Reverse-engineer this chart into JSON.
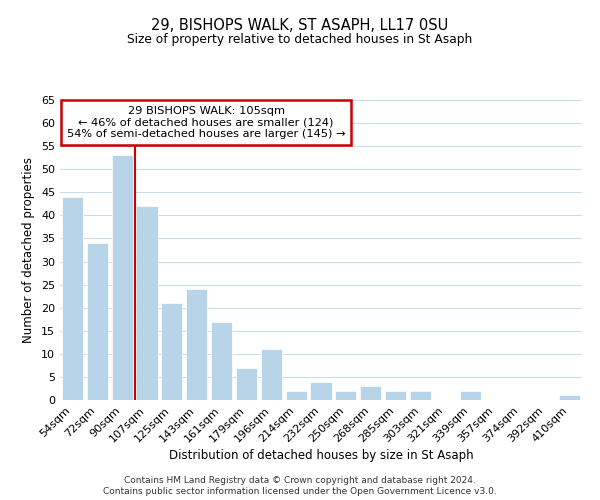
{
  "title": "29, BISHOPS WALK, ST ASAPH, LL17 0SU",
  "subtitle": "Size of property relative to detached houses in St Asaph",
  "xlabel": "Distribution of detached houses by size in St Asaph",
  "ylabel": "Number of detached properties",
  "bar_labels": [
    "54sqm",
    "72sqm",
    "90sqm",
    "107sqm",
    "125sqm",
    "143sqm",
    "161sqm",
    "179sqm",
    "196sqm",
    "214sqm",
    "232sqm",
    "250sqm",
    "268sqm",
    "285sqm",
    "303sqm",
    "321sqm",
    "339sqm",
    "357sqm",
    "374sqm",
    "392sqm",
    "410sqm"
  ],
  "bar_values": [
    44,
    34,
    53,
    42,
    21,
    24,
    17,
    7,
    11,
    2,
    4,
    2,
    3,
    2,
    2,
    0,
    2,
    0,
    0,
    0,
    1
  ],
  "bar_color": "#b8d4e8",
  "bar_edge_color": "#ffffff",
  "vline_color": "#cc0000",
  "ylim": [
    0,
    65
  ],
  "yticks": [
    0,
    5,
    10,
    15,
    20,
    25,
    30,
    35,
    40,
    45,
    50,
    55,
    60,
    65
  ],
  "annotation_title": "29 BISHOPS WALK: 105sqm",
  "annotation_line1": "← 46% of detached houses are smaller (124)",
  "annotation_line2": "54% of semi-detached houses are larger (145) →",
  "annotation_box_color": "#ffffff",
  "annotation_box_edge": "#cc0000",
  "footer1": "Contains HM Land Registry data © Crown copyright and database right 2024.",
  "footer2": "Contains public sector information licensed under the Open Government Licence v3.0.",
  "bg_color": "#ffffff",
  "grid_color": "#c8dced"
}
